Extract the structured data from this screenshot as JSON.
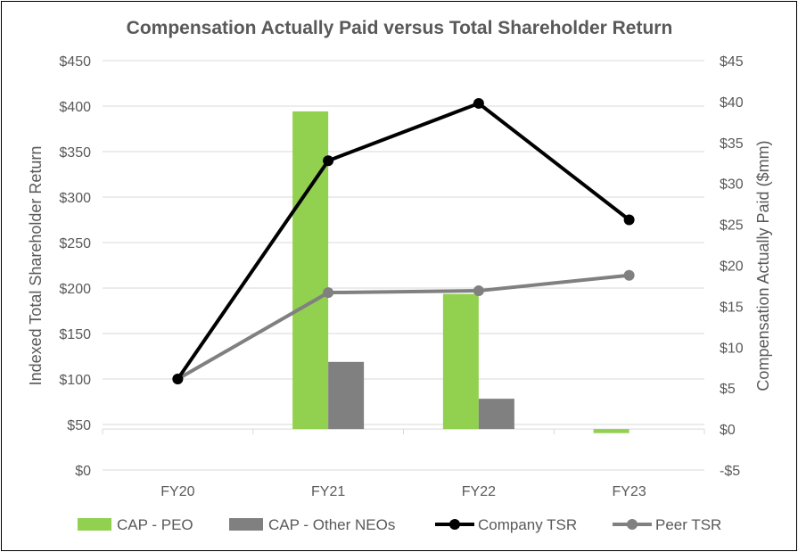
{
  "chart_data": {
    "type": "bar+line",
    "title": "Compensation Actually Paid versus Total Shareholder Return",
    "categories": [
      "FY20",
      "FY21",
      "FY22",
      "FY23"
    ],
    "left_axis": {
      "label": "Indexed Total Shareholder Return",
      "range": [
        0,
        450
      ],
      "ticks": [
        0,
        50,
        100,
        150,
        200,
        250,
        300,
        350,
        400,
        450
      ],
      "tick_labels": [
        "$0",
        "$50",
        "$100",
        "$150",
        "$200",
        "$250",
        "$300",
        "$350",
        "$400",
        "$450"
      ]
    },
    "right_axis": {
      "label": "Compensation Actually Paid ($mm)",
      "range": [
        -5,
        45
      ],
      "ticks": [
        -5,
        0,
        5,
        10,
        15,
        20,
        25,
        30,
        35,
        40,
        45
      ],
      "tick_labels": [
        "-$5",
        "$0",
        "$5",
        "$10",
        "$15",
        "$20",
        "$25",
        "$30",
        "$35",
        "$40",
        "$45"
      ]
    },
    "bar_series": [
      {
        "name": "CAP - PEO",
        "color": "#92d050",
        "axis": "right",
        "values": [
          0,
          38.8,
          16.5,
          -0.5
        ]
      },
      {
        "name": "CAP - Other NEOs",
        "color": "#808080",
        "axis": "right",
        "values": [
          0,
          8.2,
          3.7,
          0
        ]
      }
    ],
    "line_series": [
      {
        "name": "Company TSR",
        "color": "#000000",
        "axis": "left",
        "values": [
          100,
          340,
          403,
          275
        ]
      },
      {
        "name": "Peer TSR",
        "color": "#808080",
        "axis": "left",
        "values": [
          100,
          195,
          197,
          214
        ]
      }
    ],
    "legend_position": "bottom",
    "grid": "horizontal"
  }
}
